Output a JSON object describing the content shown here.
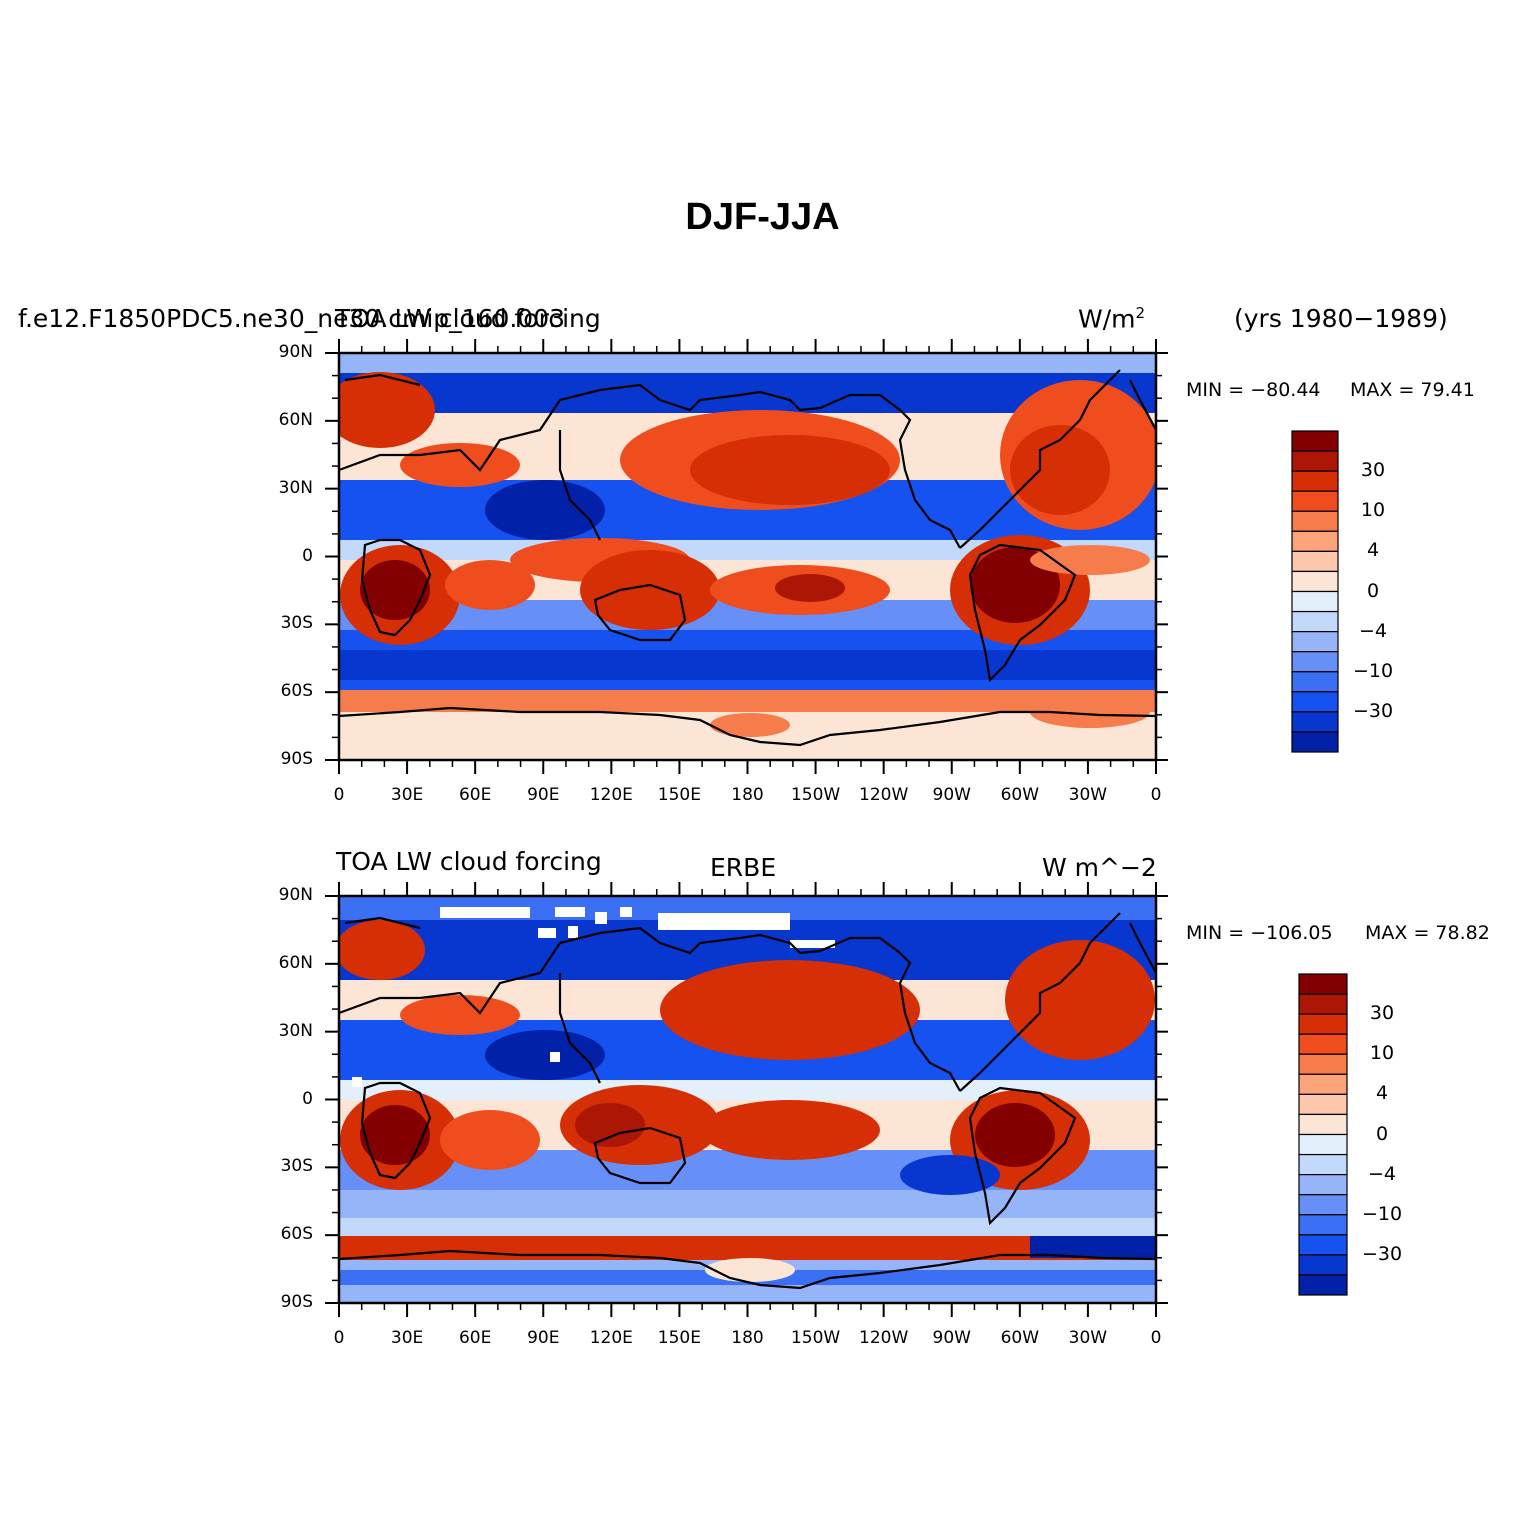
{
  "title": "DJF-JJA",
  "chart_data": [
    {
      "type": "heatmap",
      "subtitle_left": "f.e12.F1850PDC5.ne30_ne30.cmip_160.003",
      "subtitle_center": "TOA LW cloud forcing",
      "units": "W/m",
      "units_sup": "2",
      "years": "(yrs 1980−1989)",
      "min_label": "MIN = −80.44",
      "max_label": "MAX =  79.41",
      "min": -80.44,
      "max": 79.41,
      "lat_ticks": [
        "90N",
        "60N",
        "30N",
        "0",
        "30S",
        "60S",
        "90S"
      ],
      "lon_ticks": [
        "0",
        "30E",
        "60E",
        "90E",
        "120E",
        "150E",
        "180",
        "150W",
        "120W",
        "90W",
        "60W",
        "30W",
        "0"
      ],
      "colorbar_labels": [
        "30",
        "10",
        "4",
        "0",
        "−4",
        "−10",
        "−30"
      ]
    },
    {
      "type": "heatmap",
      "subtitle_left": "TOA LW cloud forcing",
      "subtitle_center": "ERBE",
      "units": "W m^−2",
      "min_label": "MIN = −106.05",
      "max_label": "MAX =  78.82",
      "min": -106.05,
      "max": 78.82,
      "lat_ticks": [
        "90N",
        "60N",
        "30N",
        "0",
        "30S",
        "60S",
        "90S"
      ],
      "lon_ticks": [
        "0",
        "30E",
        "60E",
        "90E",
        "120E",
        "150E",
        "180",
        "150W",
        "120W",
        "90W",
        "60W",
        "30W",
        "0"
      ],
      "colorbar_labels": [
        "30",
        "10",
        "4",
        "0",
        "−4",
        "−10",
        "−30"
      ]
    }
  ],
  "colors": {
    "levels": [
      "#00007d",
      "#0021a8",
      "#0737cf",
      "#1652f0",
      "#3b70f5",
      "#6690f7",
      "#96b5f9",
      "#c3d9fb",
      "#e3f0fb",
      "#fde5d5",
      "#fcc7aa",
      "#fca37a",
      "#f77c4c",
      "#f04d1e",
      "#d62e05",
      "#ab1704",
      "#820000"
    ],
    "land_outline": "#000000"
  }
}
